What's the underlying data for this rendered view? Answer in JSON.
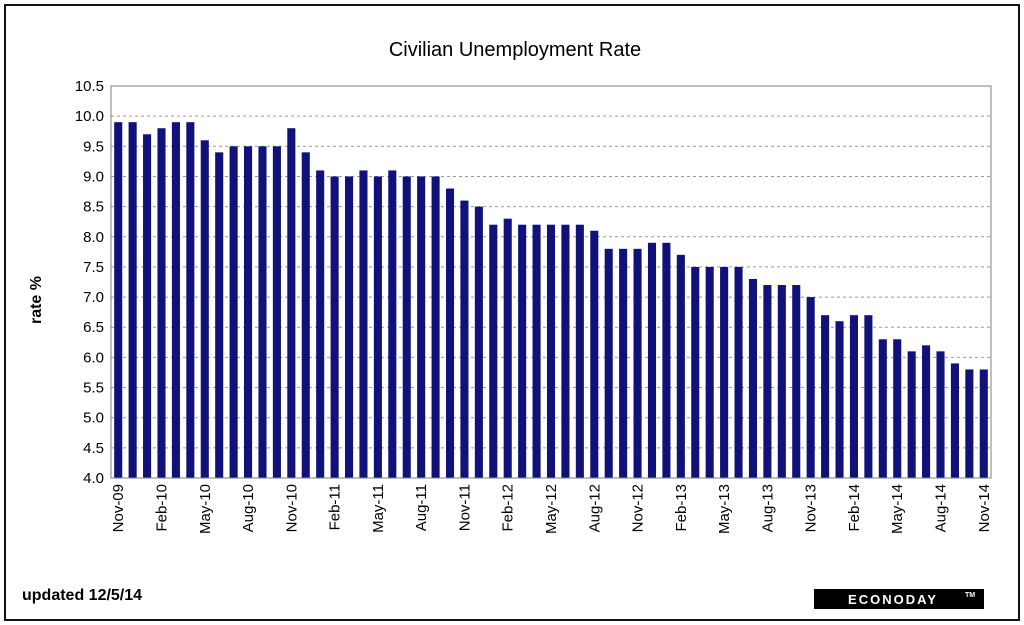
{
  "footer": {
    "updated_label": "updated 12/5/14",
    "brand": "ECONODAY",
    "brand_mark": "TM"
  },
  "colors": {
    "bar": "#11117a",
    "grid": "#9a9a9a",
    "plot_border": "#7f7f7f"
  },
  "chart_data": {
    "type": "bar",
    "title": "Civilian Unemployment Rate",
    "xlabel": "",
    "ylabel": "rate %",
    "ylim": [
      4.0,
      10.5
    ],
    "y_ticks": [
      "4.0",
      "4.5",
      "5.0",
      "5.5",
      "6.0",
      "6.5",
      "7.0",
      "7.5",
      "8.0",
      "8.5",
      "9.0",
      "9.5",
      "10.0",
      "10.5"
    ],
    "grid": "horizontal dashed",
    "legend": "none",
    "categories": [
      "Nov-09",
      "Dec-09",
      "Jan-10",
      "Feb-10",
      "Mar-10",
      "Apr-10",
      "May-10",
      "Jun-10",
      "Jul-10",
      "Aug-10",
      "Sep-10",
      "Oct-10",
      "Nov-10",
      "Dec-10",
      "Jan-11",
      "Feb-11",
      "Mar-11",
      "Apr-11",
      "May-11",
      "Jun-11",
      "Jul-11",
      "Aug-11",
      "Sep-11",
      "Oct-11",
      "Nov-11",
      "Dec-11",
      "Jan-12",
      "Feb-12",
      "Mar-12",
      "Apr-12",
      "May-12",
      "Jun-12",
      "Jul-12",
      "Aug-12",
      "Sep-12",
      "Oct-12",
      "Nov-12",
      "Dec-12",
      "Jan-13",
      "Feb-13",
      "Mar-13",
      "Apr-13",
      "May-13",
      "Jun-13",
      "Jul-13",
      "Aug-13",
      "Sep-13",
      "Oct-13",
      "Nov-13",
      "Dec-13",
      "Jan-14",
      "Feb-14",
      "Mar-14",
      "Apr-14",
      "May-14",
      "Jun-14",
      "Jul-14",
      "Aug-14",
      "Sep-14",
      "Oct-14",
      "Nov-14"
    ],
    "x_tick_labels": [
      "Nov-09",
      "Feb-10",
      "May-10",
      "Aug-10",
      "Nov-10",
      "Feb-11",
      "May-11",
      "Aug-11",
      "Nov-11",
      "Feb-12",
      "May-12",
      "Aug-12",
      "Nov-12",
      "Feb-13",
      "May-13",
      "Aug-13",
      "Nov-13",
      "Feb-14",
      "May-14",
      "Aug-14",
      "Nov-14"
    ],
    "values": [
      9.9,
      9.9,
      9.7,
      9.8,
      9.9,
      9.9,
      9.6,
      9.4,
      9.5,
      9.5,
      9.5,
      9.5,
      9.8,
      9.4,
      9.1,
      9.0,
      9.0,
      9.1,
      9.0,
      9.1,
      9.0,
      9.0,
      9.0,
      8.8,
      8.6,
      8.5,
      8.2,
      8.3,
      8.2,
      8.2,
      8.2,
      8.2,
      8.2,
      8.1,
      7.8,
      7.8,
      7.8,
      7.9,
      7.9,
      7.7,
      7.5,
      7.5,
      7.5,
      7.5,
      7.3,
      7.2,
      7.2,
      7.2,
      7.0,
      6.7,
      6.6,
      6.7,
      6.7,
      6.3,
      6.3,
      6.1,
      6.2,
      6.1,
      5.9,
      5.8,
      5.8
    ]
  }
}
